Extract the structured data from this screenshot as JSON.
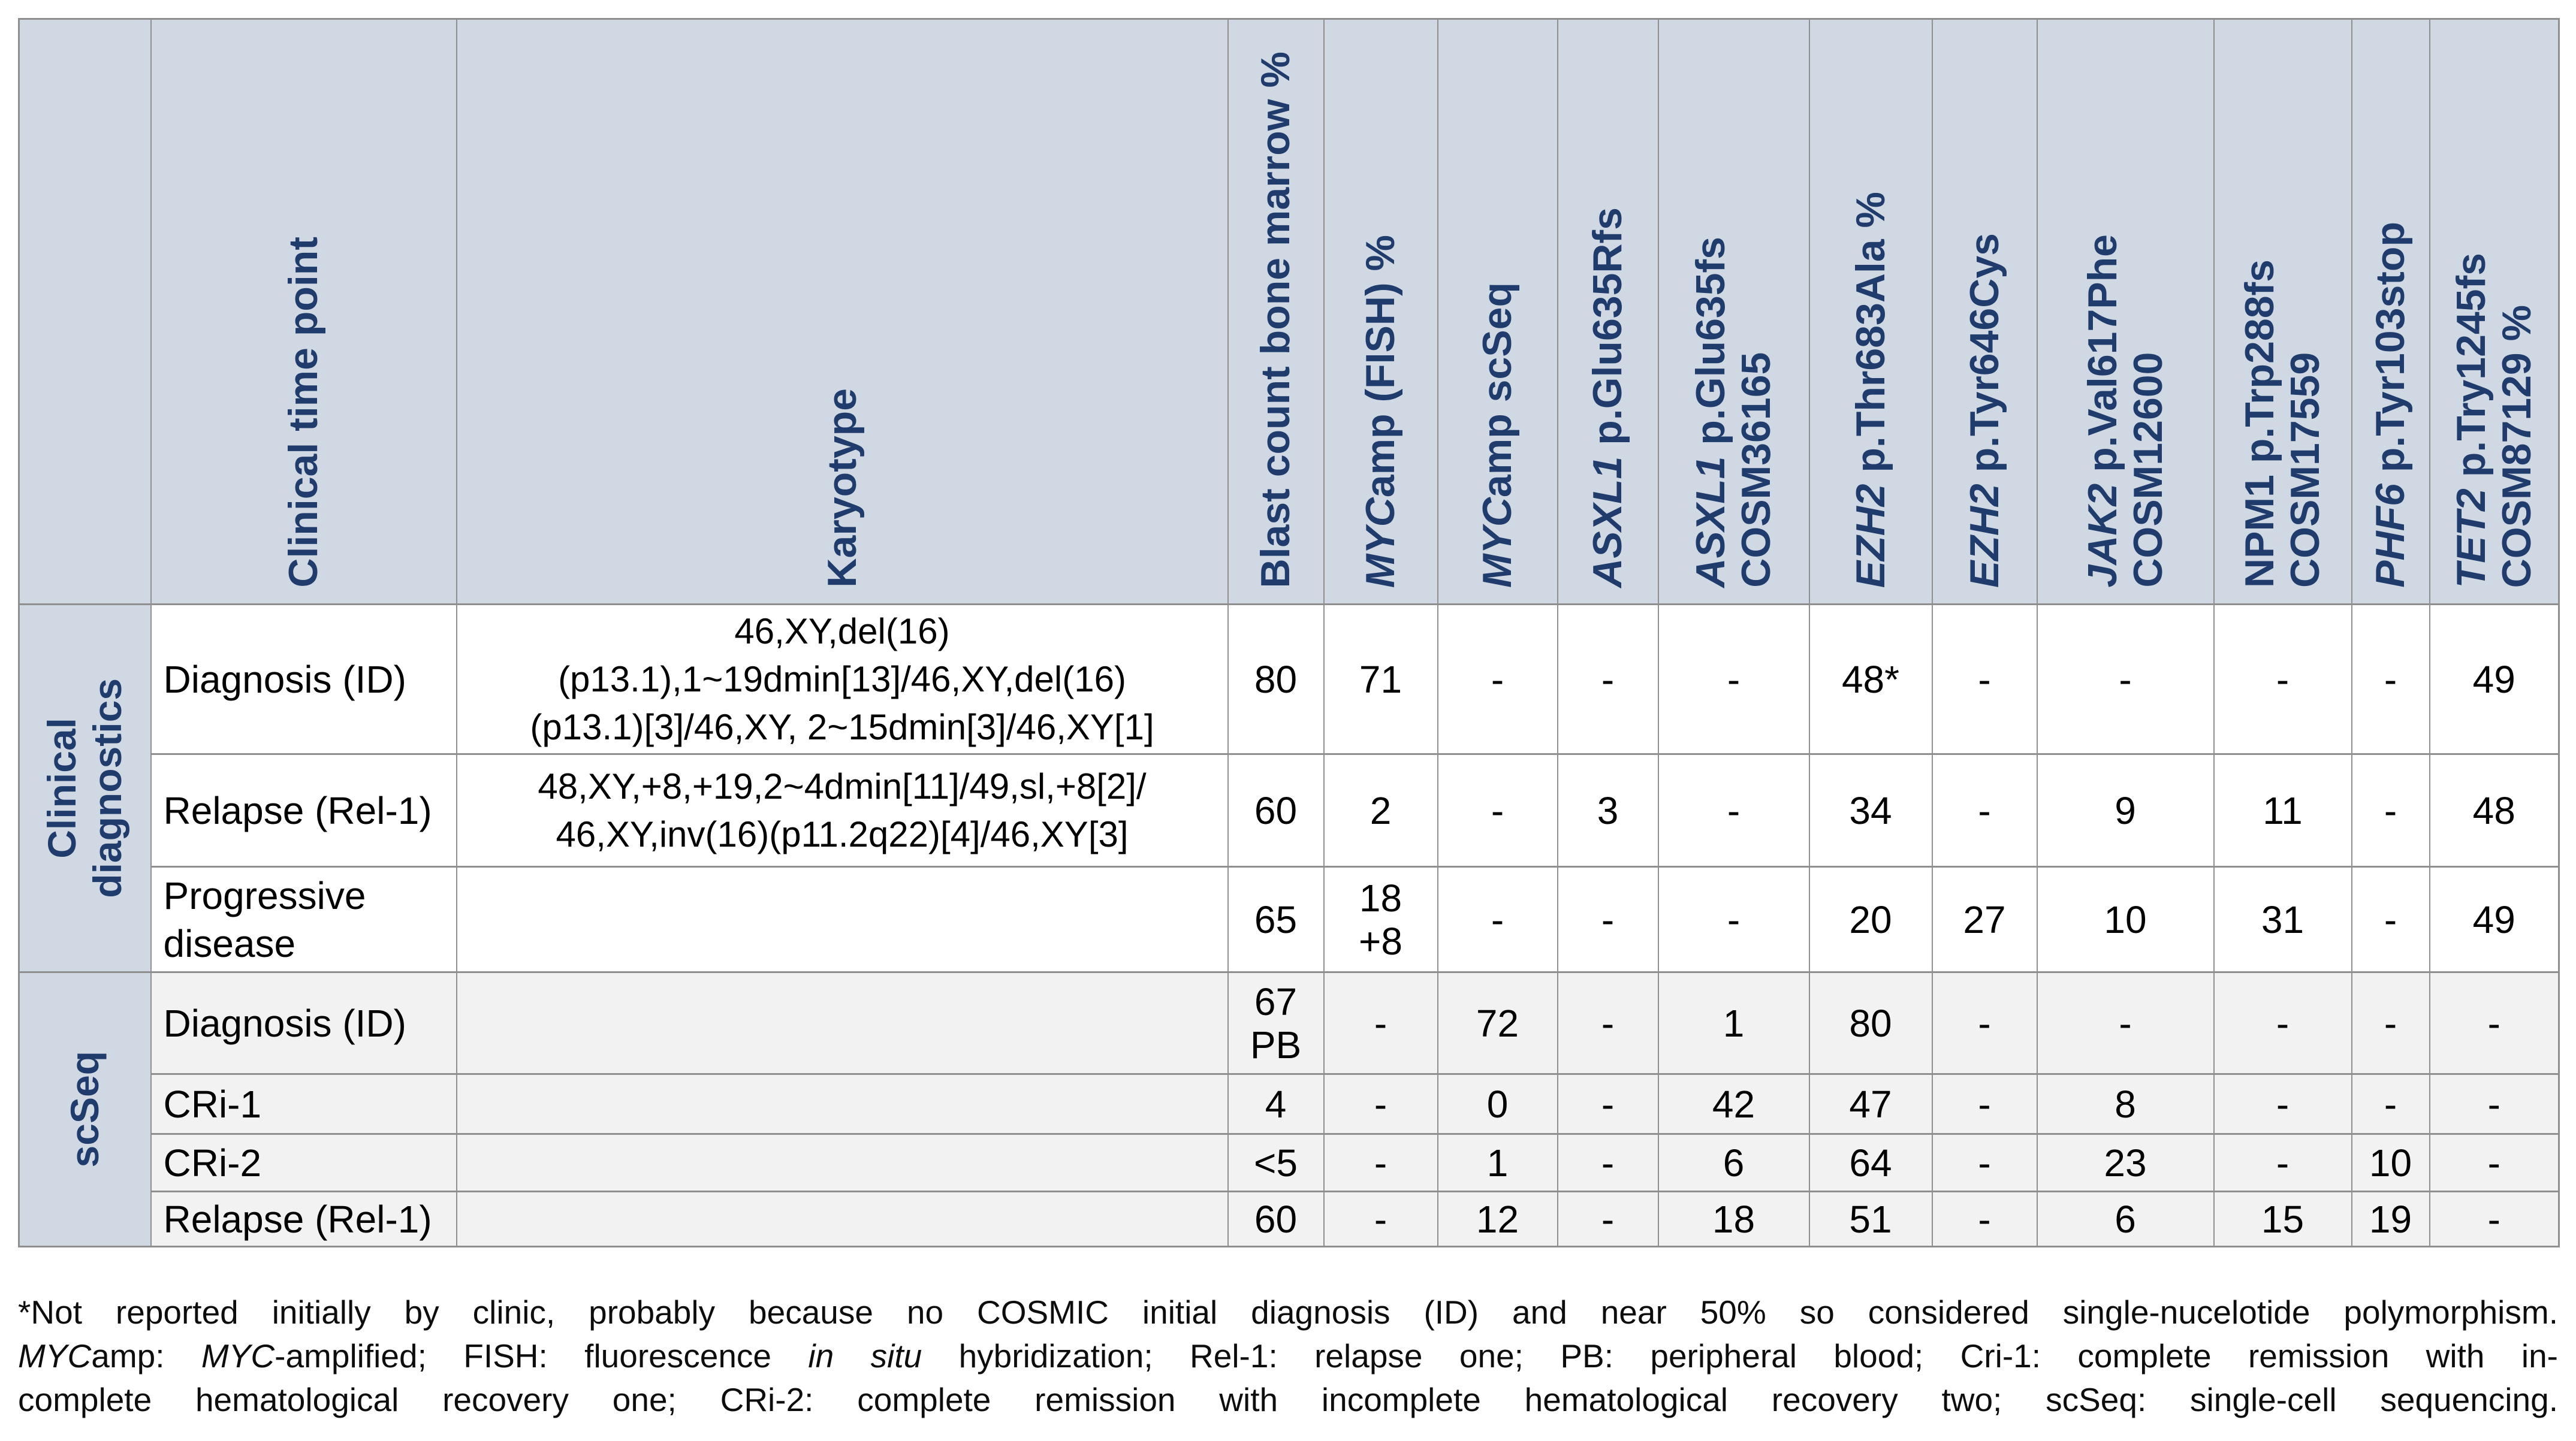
{
  "style": {
    "header_bg": "#d0d9e3",
    "navy": "#1f3c6d",
    "border": "#8f8f8f",
    "alt_bg": "#f2f2f2",
    "row_bg": "#ffffff"
  },
  "table": {
    "headers": [
      {
        "name": "clinical-time-point",
        "segments": [
          {
            "text": "Clinical time point"
          }
        ]
      },
      {
        "name": "karyotype",
        "segments": [
          {
            "text": "Karyotype"
          }
        ]
      },
      {
        "name": "blast-count-bone-marrow",
        "segments": [
          {
            "text": "Blast count bone marrow %"
          }
        ]
      },
      {
        "name": "mycamp-fish",
        "segments": [
          {
            "text": "MYC",
            "italic": true
          },
          {
            "text": "amp (FISH) %"
          }
        ]
      },
      {
        "name": "mycamp-scseq",
        "segments": [
          {
            "text": "MYC",
            "italic": true
          },
          {
            "text": "amp scSeq"
          }
        ]
      },
      {
        "name": "asxl1-glu635rfs",
        "segments": [
          {
            "text": "ASXL1",
            "italic": true
          },
          {
            "text": " p.Glu635Rfs"
          }
        ]
      },
      {
        "name": "asxl1-glu635fs-cosm36165",
        "segments": [
          {
            "text": "ASXL1",
            "italic": true
          },
          {
            "text": " p.Glu635fs\nCOSM36165"
          }
        ]
      },
      {
        "name": "ezh2-thr683ala",
        "segments": [
          {
            "text": "EZH2",
            "italic": true
          },
          {
            "text": " p.Thr683Ala  %"
          }
        ]
      },
      {
        "name": "ezh2-tyr646cys",
        "segments": [
          {
            "text": "EZH2",
            "italic": true
          },
          {
            "text": " p.Tyr646Cys"
          }
        ]
      },
      {
        "name": "jak2-val617phe-cosm12600",
        "segments": [
          {
            "text": "JAK2",
            "italic": true
          },
          {
            "text": " p.Val617Phe\nCOSM12600"
          }
        ]
      },
      {
        "name": "npm1-trp288fs-cosm17559",
        "segments": [
          {
            "text": "NPM1 p.Trp288fs\nCOSM17559"
          }
        ]
      },
      {
        "name": "phf6-tyr103stop",
        "segments": [
          {
            "text": "PHF6",
            "italic": true
          },
          {
            "text": " p.Tyr103stop"
          }
        ]
      },
      {
        "name": "tet2-try1245fs-cosm87129",
        "segments": [
          {
            "text": "TET2",
            "italic": true
          },
          {
            "text": " p.Try1245fs\nCOSM87129 %"
          }
        ]
      }
    ],
    "groups": [
      {
        "label": "Clinical\ndiagnostics"
      },
      {
        "label": "scSeq"
      }
    ],
    "rows": [
      {
        "section": "Clinical diagnostics",
        "label": "Diagnosis (ID)",
        "karyotype": "46,XY,del(16)\n(p13.1),1~19dmin[13]/46,XY,del(16)\n(p13.1)[3]/46,XY, 2~15dmin[3]/46,XY[1]",
        "values": [
          "80",
          "71",
          "-",
          "-",
          "-",
          "48*",
          "-",
          "-",
          "-",
          "-",
          "49"
        ]
      },
      {
        "section": "Clinical diagnostics",
        "label": "Relapse (Rel-1)",
        "karyotype": "48,XY,+8,+19,2~4dmin[11]/49,sl,+8[2]/\n46,XY,inv(16)(p11.2q22)[4]/46,XY[3]",
        "values": [
          "60",
          "2",
          "-",
          "3",
          "-",
          "34",
          "-",
          "9",
          "11",
          "-",
          "48"
        ]
      },
      {
        "section": "Clinical diagnostics",
        "label": "Progressive disease",
        "karyotype": "",
        "values": [
          "65",
          "18\n+8",
          "-",
          "-",
          "-",
          "20",
          "27",
          "10",
          "31",
          "-",
          "49"
        ]
      },
      {
        "section": "scSeq",
        "label": "Diagnosis (ID)",
        "karyotype": "",
        "values": [
          "67\nPB",
          "-",
          "72",
          "-",
          "1",
          "80",
          "-",
          "-",
          "-",
          "-",
          "-"
        ]
      },
      {
        "section": "scSeq",
        "label": "CRi-1",
        "karyotype": "",
        "values": [
          "4",
          "-",
          "0",
          "-",
          "42",
          "47",
          "-",
          "8",
          "-",
          "-",
          "-"
        ]
      },
      {
        "section": "scSeq",
        "label": "CRi-2",
        "karyotype": "",
        "values": [
          "<5",
          "-",
          "1",
          "-",
          "6",
          "64",
          "-",
          "23",
          "-",
          "10",
          "-"
        ]
      },
      {
        "section": "scSeq",
        "label": "Relapse (Rel-1)",
        "karyotype": "",
        "values": [
          "60",
          "-",
          "12",
          "-",
          "18",
          "51",
          "-",
          "6",
          "15",
          "19",
          "-"
        ]
      }
    ]
  },
  "footnote": {
    "lines": [
      {
        "segments": [
          {
            "text": "*Not reported initially by clinic, probably because no COSMIC initial diagnosis (ID) and near 50% so considered single-nucelotide polymorphism."
          }
        ]
      },
      {
        "segments": [
          {
            "text": "MYC",
            "italic": true
          },
          {
            "text": "amp: "
          },
          {
            "text": "MYC",
            "italic": true
          },
          {
            "text": "-amplified; FISH: fluorescence "
          },
          {
            "text": "in situ",
            "italic": true
          },
          {
            "text": " hybridization; Rel-1: relapse one; PB: peripheral blood; Cri-1: complete remission with in-"
          }
        ]
      },
      {
        "segments": [
          {
            "text": "complete hematological recovery one; CRi-2: complete remission with incomplete hematological recovery two; scSeq: single-cell sequencing."
          }
        ]
      }
    ]
  }
}
